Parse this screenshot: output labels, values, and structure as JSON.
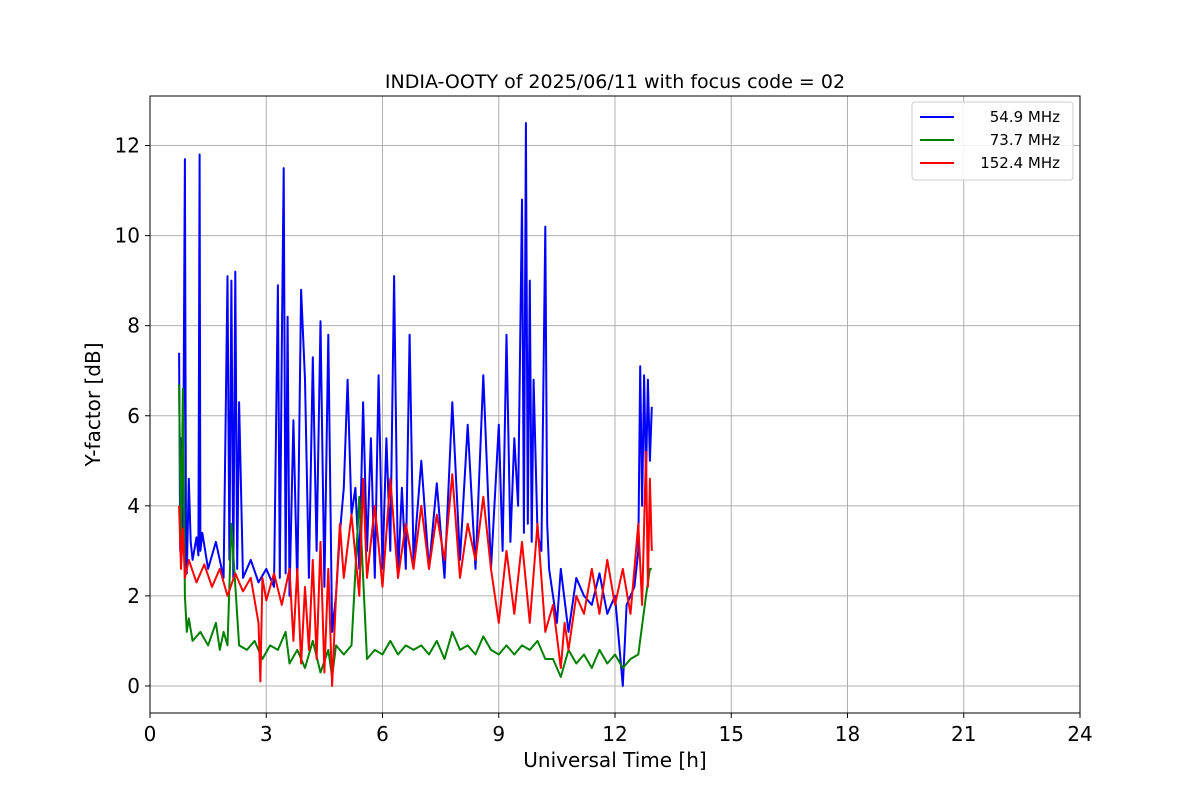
{
  "chart_data": {
    "type": "line",
    "title": "INDIA-OOTY of 2025/06/11 with focus code = 02",
    "xlabel": "Universal Time [h]",
    "ylabel": "Y-factor [dB]",
    "xlim": [
      0,
      24
    ],
    "ylim": [
      -0.6,
      13.1
    ],
    "xticks": [
      0,
      3,
      6,
      9,
      12,
      15,
      18,
      21,
      24
    ],
    "yticks": [
      0,
      2,
      4,
      6,
      8,
      10,
      12
    ],
    "grid": true,
    "legend_position": "top-right",
    "series": [
      {
        "name": "54.9 MHz",
        "color": "#0000ff",
        "x": [
          0.75,
          0.78,
          0.8,
          0.85,
          0.9,
          0.93,
          0.95,
          1.0,
          1.05,
          1.1,
          1.2,
          1.25,
          1.28,
          1.3,
          1.35,
          1.5,
          1.7,
          1.9,
          2.0,
          2.05,
          2.1,
          2.15,
          2.2,
          2.25,
          2.3,
          2.4,
          2.6,
          2.8,
          3.0,
          3.2,
          3.3,
          3.35,
          3.4,
          3.45,
          3.5,
          3.55,
          3.6,
          3.7,
          3.8,
          3.9,
          4.0,
          4.1,
          4.2,
          4.3,
          4.4,
          4.5,
          4.6,
          4.7,
          4.8,
          4.9,
          5.0,
          5.1,
          5.2,
          5.3,
          5.4,
          5.5,
          5.6,
          5.7,
          5.8,
          5.9,
          6.0,
          6.1,
          6.2,
          6.3,
          6.4,
          6.5,
          6.6,
          6.7,
          6.8,
          7.0,
          7.2,
          7.4,
          7.6,
          7.8,
          8.0,
          8.2,
          8.4,
          8.6,
          8.8,
          9.0,
          9.1,
          9.2,
          9.3,
          9.4,
          9.5,
          9.6,
          9.65,
          9.7,
          9.75,
          9.8,
          9.85,
          9.9,
          10.0,
          10.1,
          10.2,
          10.25,
          10.3,
          10.4,
          10.5,
          10.6,
          10.8,
          11.0,
          11.2,
          11.4,
          11.6,
          11.8,
          12.0,
          12.2,
          12.3,
          12.4,
          12.5,
          12.6,
          12.65,
          12.7,
          12.75,
          12.8,
          12.85,
          12.9,
          12.95
        ],
        "y": [
          7.4,
          3.0,
          5.5,
          3.5,
          11.7,
          3.0,
          2.5,
          4.6,
          3.2,
          2.8,
          3.3,
          2.9,
          11.8,
          3.0,
          3.4,
          2.6,
          3.2,
          2.4,
          9.1,
          2.8,
          9.0,
          2.4,
          9.2,
          2.6,
          6.3,
          2.4,
          2.8,
          2.3,
          2.6,
          2.2,
          8.9,
          2.4,
          7.5,
          11.5,
          2.5,
          8.2,
          2.0,
          5.9,
          2.2,
          8.8,
          6.8,
          2.4,
          7.3,
          3.0,
          8.1,
          2.2,
          7.8,
          1.2,
          2.0,
          3.4,
          4.4,
          6.8,
          3.8,
          4.4,
          2.6,
          6.3,
          3.0,
          5.5,
          2.4,
          6.9,
          2.6,
          5.5,
          3.0,
          9.1,
          2.4,
          4.4,
          2.6,
          7.8,
          2.8,
          5.0,
          2.6,
          4.5,
          2.4,
          6.3,
          2.8,
          5.8,
          2.6,
          6.9,
          2.6,
          5.8,
          3.0,
          7.8,
          3.2,
          5.5,
          4.0,
          10.8,
          3.4,
          12.5,
          3.6,
          9.0,
          3.2,
          6.8,
          3.4,
          3.0,
          10.2,
          3.6,
          2.6,
          2.0,
          1.4,
          2.6,
          1.2,
          2.4,
          2.0,
          1.8,
          2.5,
          1.6,
          2.0,
          0.0,
          1.8,
          2.0,
          2.2,
          3.0,
          7.1,
          4.0,
          6.9,
          4.6,
          6.8,
          5.0,
          6.2
        ]
      },
      {
        "name": "73.7 MHz",
        "color": "#008000",
        "x": [
          0.75,
          0.8,
          0.85,
          0.9,
          0.95,
          1.0,
          1.1,
          1.3,
          1.5,
          1.7,
          1.8,
          1.9,
          2.0,
          2.1,
          2.3,
          2.5,
          2.7,
          2.9,
          3.1,
          3.3,
          3.5,
          3.6,
          3.8,
          4.0,
          4.2,
          4.4,
          4.6,
          4.7,
          4.8,
          5.0,
          5.2,
          5.4,
          5.6,
          5.8,
          6.0,
          6.2,
          6.4,
          6.6,
          6.8,
          7.0,
          7.2,
          7.4,
          7.6,
          7.8,
          8.0,
          8.2,
          8.4,
          8.6,
          8.8,
          9.0,
          9.2,
          9.4,
          9.6,
          9.8,
          10.0,
          10.2,
          10.4,
          10.6,
          10.8,
          11.0,
          11.2,
          11.4,
          11.6,
          11.8,
          12.0,
          12.2,
          12.4,
          12.6,
          12.8,
          12.9,
          12.95
        ],
        "y": [
          6.7,
          3.0,
          6.6,
          2.0,
          1.2,
          1.5,
          1.0,
          1.2,
          0.9,
          1.4,
          0.8,
          1.2,
          0.9,
          3.6,
          0.9,
          0.8,
          1.0,
          0.6,
          0.9,
          0.8,
          1.2,
          0.5,
          0.8,
          0.4,
          1.0,
          0.3,
          0.8,
          0.2,
          0.9,
          0.7,
          0.9,
          4.2,
          0.6,
          0.8,
          0.7,
          1.0,
          0.7,
          0.9,
          0.8,
          0.9,
          0.7,
          1.0,
          0.6,
          1.2,
          0.8,
          0.9,
          0.7,
          1.1,
          0.8,
          0.7,
          0.9,
          0.7,
          0.9,
          0.8,
          1.0,
          0.6,
          0.6,
          0.2,
          0.8,
          0.5,
          0.7,
          0.4,
          0.8,
          0.5,
          0.7,
          0.4,
          0.6,
          0.7,
          2.0,
          2.6,
          2.6
        ]
      },
      {
        "name": "152.4 MHz",
        "color": "#ff0000",
        "x": [
          0.75,
          0.8,
          0.85,
          0.9,
          1.0,
          1.2,
          1.4,
          1.6,
          1.8,
          2.0,
          2.2,
          2.4,
          2.6,
          2.8,
          2.85,
          2.9,
          3.0,
          3.2,
          3.4,
          3.6,
          3.7,
          3.8,
          3.9,
          4.0,
          4.1,
          4.2,
          4.3,
          4.4,
          4.5,
          4.6,
          4.7,
          4.8,
          4.9,
          5.0,
          5.2,
          5.4,
          5.5,
          5.6,
          5.8,
          6.0,
          6.2,
          6.4,
          6.6,
          6.8,
          7.0,
          7.2,
          7.4,
          7.6,
          7.8,
          8.0,
          8.2,
          8.4,
          8.6,
          8.8,
          9.0,
          9.2,
          9.4,
          9.6,
          9.8,
          10.0,
          10.2,
          10.4,
          10.6,
          10.7,
          10.8,
          11.0,
          11.2,
          11.4,
          11.6,
          11.8,
          12.0,
          12.2,
          12.4,
          12.6,
          12.7,
          12.8,
          12.85,
          12.9,
          12.95
        ],
        "y": [
          4.0,
          2.6,
          3.5,
          2.4,
          2.8,
          2.3,
          2.7,
          2.2,
          2.6,
          2.0,
          2.5,
          2.1,
          2.4,
          1.4,
          0.1,
          2.4,
          1.9,
          2.5,
          1.8,
          2.6,
          1.0,
          2.6,
          0.5,
          2.2,
          0.8,
          2.8,
          0.6,
          3.2,
          0.3,
          2.6,
          0.0,
          2.0,
          3.6,
          2.4,
          3.8,
          2.0,
          4.6,
          2.4,
          4.0,
          2.2,
          4.6,
          2.4,
          3.6,
          2.6,
          4.0,
          2.6,
          3.8,
          2.8,
          4.7,
          2.4,
          3.6,
          2.8,
          4.2,
          2.6,
          1.4,
          3.0,
          1.6,
          3.2,
          1.4,
          3.6,
          1.2,
          1.8,
          0.4,
          1.4,
          0.8,
          2.0,
          1.6,
          2.6,
          1.6,
          2.8,
          1.8,
          2.6,
          1.6,
          3.6,
          1.8,
          5.2,
          2.2,
          4.6,
          3.0
        ]
      }
    ]
  }
}
